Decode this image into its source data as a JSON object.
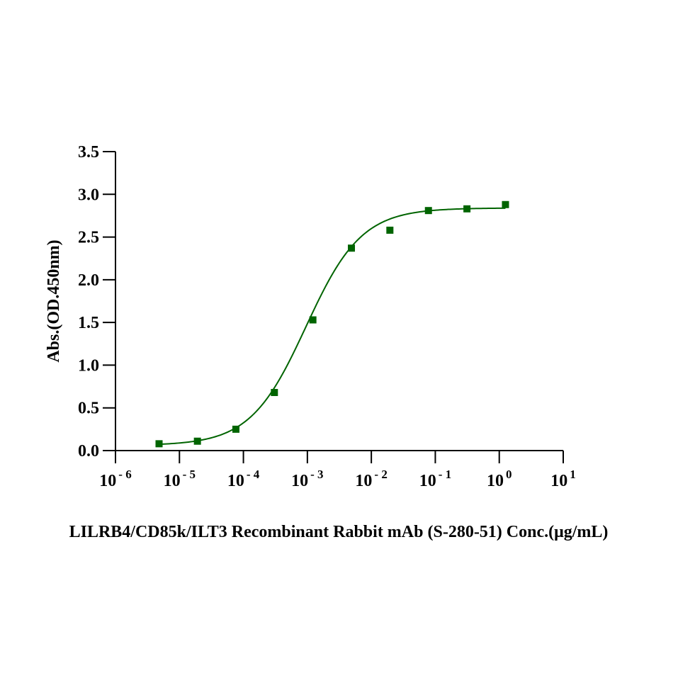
{
  "chart_data": {
    "type": "scatter",
    "title": "",
    "xlabel": "LILRB4/CD85k/ILT3 Recombinant Rabbit mAb (S-280-51) Conc.(μg/mL)",
    "ylabel": "Abs.(OD.450nm)",
    "xscale": "log",
    "xlim": [
      1e-06,
      10
    ],
    "ylim": [
      0,
      3.5
    ],
    "grid": false,
    "legend": "none",
    "x_ticks": [
      {
        "base": "10",
        "exp": "-6"
      },
      {
        "base": "10",
        "exp": "-5"
      },
      {
        "base": "10",
        "exp": "-4"
      },
      {
        "base": "10",
        "exp": "-3"
      },
      {
        "base": "10",
        "exp": "-2"
      },
      {
        "base": "10",
        "exp": "-1"
      },
      {
        "base": "10",
        "exp": "0"
      },
      {
        "base": "10",
        "exp": "1"
      }
    ],
    "y_ticks": [
      "0.0",
      "0.5",
      "1.0",
      "1.5",
      "2.0",
      "2.5",
      "3.0",
      "3.5"
    ],
    "color": "#006400",
    "series": [
      {
        "x": [
          4.8e-06,
          1.91e-05,
          7.63e-05,
          0.000305,
          0.00122,
          0.00488,
          0.0195,
          0.0781,
          0.3125,
          1.25
        ],
        "y": [
          0.08,
          0.11,
          0.25,
          0.68,
          1.53,
          2.37,
          2.58,
          2.81,
          2.83,
          2.88
        ]
      }
    ],
    "fit_curve": {
      "model": "4PL",
      "bottom": 0.06,
      "top": 2.84,
      "ec50": 0.00095,
      "hill": 1.0,
      "x_range": [
        4.8e-06,
        1.25
      ]
    }
  }
}
